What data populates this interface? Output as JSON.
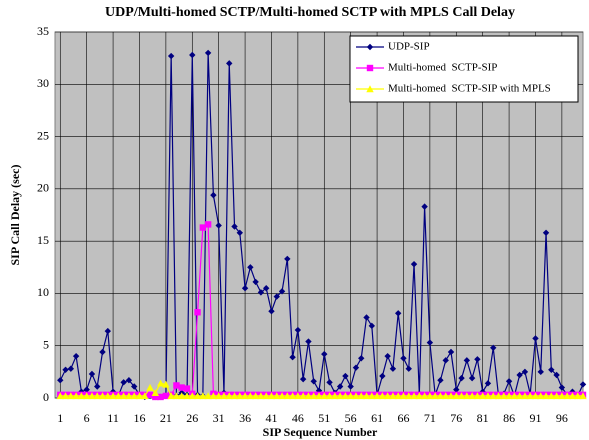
{
  "chart_data": {
    "type": "line",
    "title": "UDP/Multi-homed SCTP/Multi-homed SCTP with MPLS Call Delay",
    "x_label": "SIP Sequence Number",
    "y_label": "SIP Call Delay (sec)",
    "x": [
      1,
      2,
      3,
      4,
      5,
      6,
      7,
      8,
      9,
      10,
      11,
      12,
      13,
      14,
      15,
      16,
      17,
      18,
      19,
      20,
      21,
      22,
      23,
      24,
      25,
      26,
      27,
      28,
      29,
      30,
      31,
      32,
      33,
      34,
      35,
      36,
      37,
      38,
      39,
      40,
      41,
      42,
      43,
      44,
      45,
      46,
      47,
      48,
      49,
      50,
      51,
      52,
      53,
      54,
      55,
      56,
      57,
      58,
      59,
      60,
      61,
      62,
      63,
      64,
      65,
      66,
      67,
      68,
      69,
      70,
      71,
      72,
      73,
      74,
      75,
      76,
      77,
      78,
      79,
      80,
      81,
      82,
      83,
      84,
      85,
      86,
      87,
      88,
      89,
      90,
      91,
      92,
      93,
      94,
      95,
      96,
      97,
      98,
      99,
      100
    ],
    "series": [
      {
        "name": "UDP-SIP",
        "color": "#000080",
        "marker": "diamond",
        "values": [
          1.7,
          2.7,
          2.8,
          4.0,
          0.6,
          0.8,
          2.3,
          1.1,
          4.4,
          6.4,
          0.6,
          0.2,
          1.5,
          1.7,
          1.1,
          0.3,
          0.1,
          0.2,
          0.1,
          0.1,
          0.2,
          32.7,
          0.2,
          0.5,
          0.3,
          32.8,
          0.3,
          0.2,
          33.0,
          19.4,
          16.5,
          0.5,
          32.0,
          16.4,
          15.8,
          10.5,
          12.5,
          11.1,
          10.1,
          10.5,
          8.3,
          9.7,
          10.2,
          13.3,
          3.9,
          6.5,
          1.8,
          5.4,
          1.6,
          0.7,
          4.2,
          1.5,
          0.5,
          1.1,
          2.1,
          1.1,
          2.9,
          3.8,
          7.7,
          6.9,
          0.3,
          2.1,
          4.0,
          2.8,
          8.1,
          3.8,
          2.8,
          12.8,
          0.4,
          18.3,
          5.3,
          0.3,
          1.7,
          3.6,
          4.4,
          0.8,
          1.9,
          3.6,
          1.9,
          3.7,
          0.6,
          1.4,
          4.8,
          0.2,
          0.4,
          1.6,
          0.2,
          2.2,
          2.5,
          0.4,
          5.7,
          2.5,
          15.8,
          2.7,
          2.2,
          1.0,
          0.3,
          0.6,
          0.2,
          1.3
        ]
      },
      {
        "name": "Multi-homed  SCTP-SIP",
        "color": "#ff00ff",
        "marker": "square",
        "values": [
          0.3,
          0.3,
          0.3,
          0.3,
          0.3,
          0.3,
          0.3,
          0.3,
          0.3,
          0.3,
          0.3,
          0.3,
          0.3,
          0.3,
          0.3,
          0.3,
          0.3,
          0.3,
          0.1,
          0.1,
          0.2,
          0.3,
          1.2,
          1.0,
          0.9,
          0.4,
          8.2,
          16.3,
          16.6,
          0.4,
          0.3,
          0.3,
          0.3,
          0.3,
          0.3,
          0.3,
          0.3,
          0.3,
          0.3,
          0.3,
          0.3,
          0.3,
          0.3,
          0.3,
          0.3,
          0.3,
          0.3,
          0.3,
          0.3,
          0.3,
          0.3,
          0.3,
          0.3,
          0.3,
          0.3,
          0.3,
          0.3,
          0.3,
          0.3,
          0.3,
          0.3,
          0.3,
          0.3,
          0.3,
          0.3,
          0.3,
          0.3,
          0.3,
          0.3,
          0.3,
          0.3,
          0.3,
          0.3,
          0.3,
          0.3,
          0.3,
          0.3,
          0.3,
          0.3,
          0.3,
          0.3,
          0.3,
          0.3,
          0.3,
          0.3,
          0.3,
          0.3,
          0.3,
          0.3,
          0.3,
          0.3,
          0.3,
          0.3,
          0.3,
          0.3,
          0.3,
          0.3,
          0.3,
          0.3,
          0.3
        ]
      },
      {
        "name": "Multi-homed  SCTP-SIP with MPLS",
        "color": "#ffff00",
        "marker": "triangle",
        "values": [
          0.2,
          0.2,
          0.2,
          0.2,
          0.2,
          0.2,
          0.2,
          0.2,
          0.2,
          0.2,
          0.2,
          0.2,
          0.2,
          0.2,
          0.2,
          0.2,
          0.2,
          1.0,
          0.5,
          1.4,
          1.3,
          0.2,
          0.2,
          0.2,
          0.2,
          0.2,
          0.2,
          0.2,
          0.2,
          0.2,
          0.2,
          0.2,
          0.2,
          0.2,
          0.2,
          0.2,
          0.2,
          0.2,
          0.2,
          0.2,
          0.2,
          0.2,
          0.2,
          0.2,
          0.2,
          0.2,
          0.2,
          0.2,
          0.2,
          0.2,
          0.2,
          0.2,
          0.2,
          0.2,
          0.2,
          0.2,
          0.2,
          0.2,
          0.2,
          0.2,
          0.2,
          0.2,
          0.2,
          0.2,
          0.2,
          0.2,
          0.2,
          0.2,
          0.2,
          0.2,
          0.2,
          0.2,
          0.2,
          0.2,
          0.2,
          0.2,
          0.2,
          0.2,
          0.2,
          0.2,
          0.2,
          0.2,
          0.2,
          0.2,
          0.2,
          0.2,
          0.2,
          0.2,
          0.2,
          0.2,
          0.2,
          0.2,
          0.2,
          0.2,
          0.2,
          0.2,
          0.2,
          0.2,
          0.2,
          0.2
        ]
      }
    ],
    "xlim": [
      0,
      100
    ],
    "xticks": [
      1,
      6,
      11,
      16,
      21,
      26,
      31,
      36,
      41,
      46,
      51,
      56,
      61,
      66,
      71,
      76,
      81,
      86,
      91,
      96
    ],
    "ylim": [
      0,
      35
    ],
    "yticks": [
      0,
      5,
      10,
      15,
      20,
      25,
      30,
      35
    ],
    "grid": true,
    "legend": "upper right",
    "background": "#c0c0c0"
  }
}
